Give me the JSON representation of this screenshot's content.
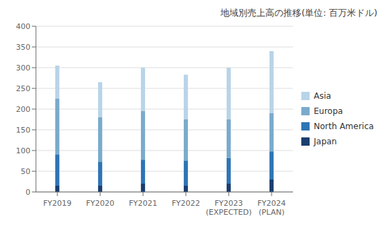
{
  "chart_data": {
    "type": "bar",
    "stacked": true,
    "title": "地域別売上高の推移(単位: 百万米ドル)",
    "categories": [
      "FY2019",
      "FY2020",
      "FY2021",
      "FY2022",
      "FY2023\n(EXPECTED)",
      "FY2024\n(PLAN)"
    ],
    "series": [
      {
        "name": "Japan",
        "color": "#1a3f6f",
        "values": [
          15,
          15,
          20,
          15,
          20,
          30
        ]
      },
      {
        "name": "North America",
        "color": "#2e75b6",
        "values": [
          75,
          58,
          58,
          60,
          62,
          68
        ]
      },
      {
        "name": "Europa",
        "color": "#7aabcc",
        "values": [
          135,
          107,
          117,
          100,
          93,
          92
        ]
      },
      {
        "name": "Asia",
        "color": "#b8d4e8",
        "values": [
          80,
          85,
          105,
          108,
          125,
          150
        ]
      }
    ],
    "ylim": [
      0,
      400
    ],
    "yticks": [
      0,
      50,
      100,
      150,
      200,
      250,
      300,
      350,
      400
    ],
    "grid": true,
    "legend": "right"
  }
}
